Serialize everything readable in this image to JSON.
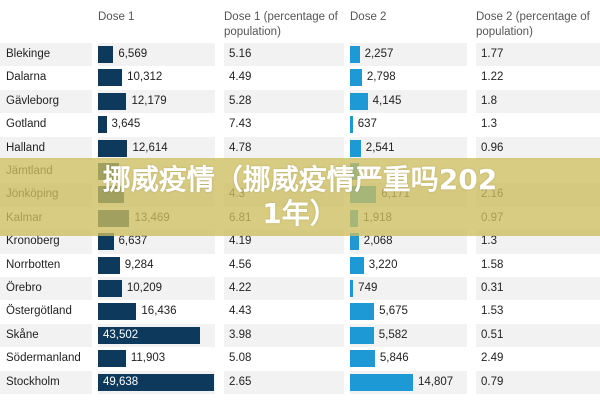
{
  "headers": {
    "dose1": "Dose 1",
    "dose1_pct": "Dose 1 (percentage of population)",
    "dose2": "Dose 2",
    "dose2_pct": "Dose 2 (percentage of population)"
  },
  "colors": {
    "dose1_bar": "#0d3a5c",
    "dose2_bar": "#1d9ad6",
    "overlay": "#cdbe5f"
  },
  "overlay": {
    "title_line1": "挪威疫情（挪威疫情严重吗202",
    "title_line2": "1年）"
  },
  "rows": [
    {
      "region": "Blekinge",
      "dose1": "6,569",
      "dose1_pct": "5.16",
      "dose2": "2,257",
      "dose2_pct": "1.77"
    },
    {
      "region": "Dalarna",
      "dose1": "10,312",
      "dose1_pct": "4.49",
      "dose2": "2,798",
      "dose2_pct": "1.22"
    },
    {
      "region": "Gävleborg",
      "dose1": "12,179",
      "dose1_pct": "5.28",
      "dose2": "4,145",
      "dose2_pct": "1.8"
    },
    {
      "region": "Gotland",
      "dose1": "3,645",
      "dose1_pct": "7.43",
      "dose2": "637",
      "dose2_pct": "1.3"
    },
    {
      "region": "Halland",
      "dose1": "12,614",
      "dose1_pct": "4.78",
      "dose2": "2,541",
      "dose2_pct": "0.96"
    },
    {
      "region": "Jämtland",
      "dose1": "",
      "dose1_pct": "",
      "dose2": "",
      "dose2_pct": ""
    },
    {
      "region": "Jönköping",
      "dose1": "",
      "dose1_pct": "4.3",
      "dose2": "6,171",
      "dose2_pct": "2.16"
    },
    {
      "region": "Kalmar",
      "dose1": "13,469",
      "dose1_pct": "6.81",
      "dose2": "1,918",
      "dose2_pct": "0.97"
    },
    {
      "region": "Kronoberg",
      "dose1": "6,637",
      "dose1_pct": "4.19",
      "dose2": "2,068",
      "dose2_pct": "1.3"
    },
    {
      "region": "Norrbotten",
      "dose1": "9,284",
      "dose1_pct": "4.56",
      "dose2": "3,220",
      "dose2_pct": "1.58"
    },
    {
      "region": "Örebro",
      "dose1": "10,209",
      "dose1_pct": "4.22",
      "dose2": "749",
      "dose2_pct": "0.31"
    },
    {
      "region": "Östergötland",
      "dose1": "16,436",
      "dose1_pct": "4.43",
      "dose2": "5,675",
      "dose2_pct": "1.53"
    },
    {
      "region": "Skåne",
      "dose1": "43,502",
      "dose1_pct": "3.98",
      "dose2": "5,582",
      "dose2_pct": "0.51"
    },
    {
      "region": "Södermanland",
      "dose1": "11,903",
      "dose1_pct": "5.08",
      "dose2": "5,846",
      "dose2_pct": "2.49"
    },
    {
      "region": "Stockholm",
      "dose1": "49,638",
      "dose1_pct": "2.65",
      "dose2": "14,807",
      "dose2_pct": "0.79"
    }
  ],
  "bar_values": {
    "dose1": [
      6569,
      10312,
      12179,
      3645,
      12614,
      9000,
      11000,
      13469,
      6637,
      9284,
      10209,
      16436,
      43502,
      11903,
      49638
    ],
    "dose2": [
      2257,
      2798,
      4145,
      637,
      2541,
      2000,
      6171,
      1918,
      2068,
      3220,
      749,
      5675,
      5582,
      5846,
      14807
    ]
  }
}
